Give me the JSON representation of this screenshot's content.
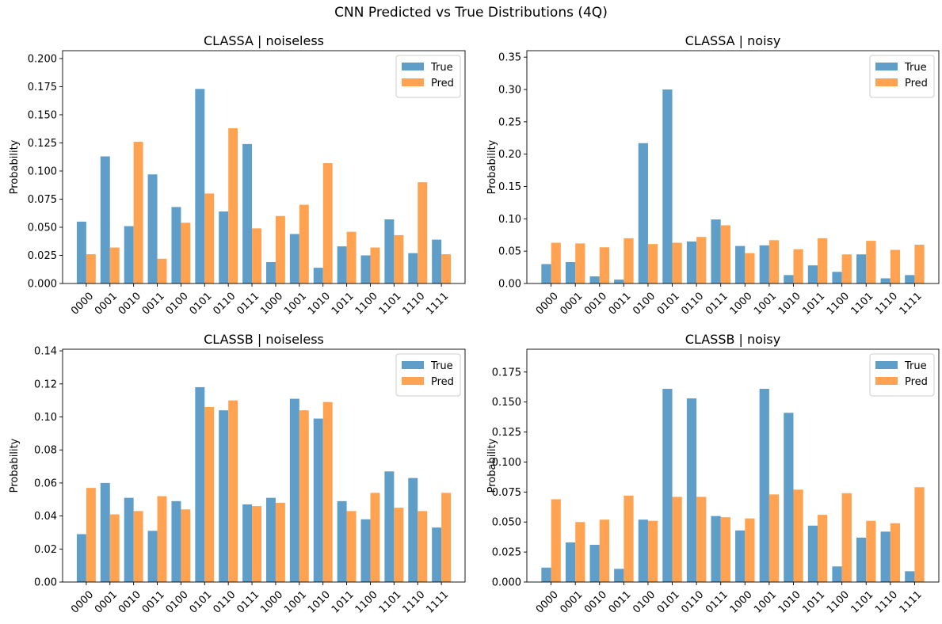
{
  "figure": {
    "title": "CNN Predicted vs True Distributions (4Q)"
  },
  "colors": {
    "true": "#5f9ec9",
    "pred": "#ffa352"
  },
  "chart_data": [
    {
      "type": "bar",
      "title": "CLASSA | noiseless",
      "ylabel": "Probability",
      "ylim": [
        0,
        0.207
      ],
      "yticks": [
        0.0,
        0.025,
        0.05,
        0.075,
        0.1,
        0.125,
        0.15,
        0.175,
        0.2
      ],
      "ytick_labels": [
        "0.000",
        "0.025",
        "0.050",
        "0.075",
        "0.100",
        "0.125",
        "0.150",
        "0.175",
        "0.200"
      ],
      "categories": [
        "0000",
        "0001",
        "0010",
        "0011",
        "0100",
        "0101",
        "0110",
        "0111",
        "1000",
        "1001",
        "1010",
        "1011",
        "1100",
        "1101",
        "1110",
        "1111"
      ],
      "series": [
        {
          "name": "True",
          "values": [
            0.055,
            0.113,
            0.051,
            0.097,
            0.068,
            0.173,
            0.064,
            0.124,
            0.019,
            0.044,
            0.014,
            0.033,
            0.025,
            0.057,
            0.027,
            0.039
          ]
        },
        {
          "name": "Pred",
          "values": [
            0.026,
            0.032,
            0.126,
            0.022,
            0.054,
            0.08,
            0.138,
            0.049,
            0.06,
            0.07,
            0.107,
            0.046,
            0.032,
            0.043,
            0.09,
            0.026
          ]
        }
      ],
      "legend": "top-right"
    },
    {
      "type": "bar",
      "title": "CLASSA | noisy",
      "ylabel": "Probability",
      "ylim": [
        0,
        0.36
      ],
      "yticks": [
        0.0,
        0.05,
        0.1,
        0.15,
        0.2,
        0.25,
        0.3,
        0.35
      ],
      "ytick_labels": [
        "0.00",
        "0.05",
        "0.10",
        "0.15",
        "0.20",
        "0.25",
        "0.30",
        "0.35"
      ],
      "categories": [
        "0000",
        "0001",
        "0010",
        "0011",
        "0100",
        "0101",
        "0110",
        "0111",
        "1000",
        "1001",
        "1010",
        "1011",
        "1100",
        "1101",
        "1110",
        "1111"
      ],
      "series": [
        {
          "name": "True",
          "values": [
            0.03,
            0.033,
            0.011,
            0.006,
            0.217,
            0.3,
            0.065,
            0.099,
            0.058,
            0.059,
            0.013,
            0.028,
            0.018,
            0.045,
            0.008,
            0.013
          ]
        },
        {
          "name": "Pred",
          "values": [
            0.063,
            0.062,
            0.056,
            0.07,
            0.061,
            0.063,
            0.072,
            0.09,
            0.047,
            0.067,
            0.053,
            0.07,
            0.045,
            0.066,
            0.052,
            0.06
          ]
        }
      ],
      "legend": "top-right"
    },
    {
      "type": "bar",
      "title": "CLASSB | noiseless",
      "ylabel": "Probability",
      "ylim": [
        0,
        0.141
      ],
      "yticks": [
        0.0,
        0.02,
        0.04,
        0.06,
        0.08,
        0.1,
        0.12,
        0.14
      ],
      "ytick_labels": [
        "0.00",
        "0.02",
        "0.04",
        "0.06",
        "0.08",
        "0.10",
        "0.12",
        "0.14"
      ],
      "categories": [
        "0000",
        "0001",
        "0010",
        "0011",
        "0100",
        "0101",
        "0110",
        "0111",
        "1000",
        "1001",
        "1010",
        "1011",
        "1100",
        "1101",
        "1110",
        "1111"
      ],
      "series": [
        {
          "name": "True",
          "values": [
            0.029,
            0.06,
            0.051,
            0.031,
            0.049,
            0.118,
            0.104,
            0.047,
            0.051,
            0.111,
            0.099,
            0.049,
            0.038,
            0.067,
            0.063,
            0.033
          ]
        },
        {
          "name": "Pred",
          "values": [
            0.057,
            0.041,
            0.043,
            0.052,
            0.044,
            0.106,
            0.11,
            0.046,
            0.048,
            0.104,
            0.109,
            0.043,
            0.054,
            0.045,
            0.043,
            0.054
          ]
        }
      ],
      "legend": "top-right"
    },
    {
      "type": "bar",
      "title": "CLASSB | noisy",
      "ylabel": "Probability",
      "ylim": [
        0,
        0.194
      ],
      "yticks": [
        0.0,
        0.025,
        0.05,
        0.075,
        0.1,
        0.125,
        0.15,
        0.175
      ],
      "ytick_labels": [
        "0.000",
        "0.025",
        "0.050",
        "0.075",
        "0.100",
        "0.125",
        "0.150",
        "0.175"
      ],
      "categories": [
        "0000",
        "0001",
        "0010",
        "0011",
        "0100",
        "0101",
        "0110",
        "0111",
        "1000",
        "1001",
        "1010",
        "1011",
        "1100",
        "1101",
        "1110",
        "1111"
      ],
      "series": [
        {
          "name": "True",
          "values": [
            0.012,
            0.033,
            0.031,
            0.011,
            0.052,
            0.161,
            0.153,
            0.055,
            0.043,
            0.161,
            0.141,
            0.047,
            0.013,
            0.037,
            0.042,
            0.009
          ]
        },
        {
          "name": "Pred",
          "values": [
            0.069,
            0.05,
            0.052,
            0.072,
            0.051,
            0.071,
            0.071,
            0.054,
            0.053,
            0.073,
            0.077,
            0.056,
            0.074,
            0.051,
            0.049,
            0.079
          ]
        }
      ],
      "legend": "top-right"
    }
  ]
}
